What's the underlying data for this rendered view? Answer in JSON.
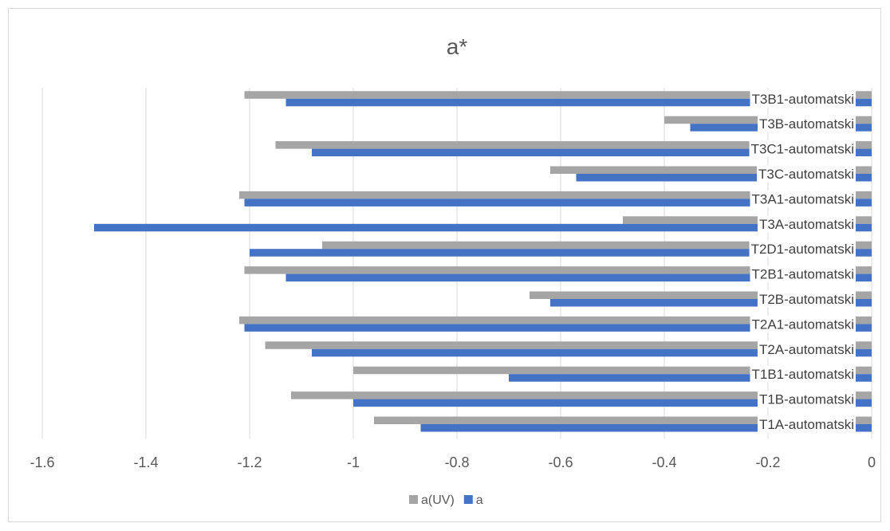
{
  "chart_data": {
    "type": "bar",
    "orientation": "horizontal",
    "title": "a*",
    "xlim": [
      -1.6,
      0
    ],
    "x_ticks": [
      "-1.6",
      "-1.4",
      "-1.2",
      "-1",
      "-0.8",
      "-0.6",
      "-0.4",
      "-0.2",
      "0"
    ],
    "x_tick_values": [
      -1.6,
      -1.4,
      -1.2,
      -1.0,
      -0.8,
      -0.6,
      -0.4,
      -0.2,
      0
    ],
    "grid": true,
    "legend_position": "bottom",
    "categories": [
      "T1A-automatski",
      "T1B-automatski",
      "T1B1-automatski",
      "T2A-automatski",
      "T2A1-automatski",
      "T2B-automatski",
      "T2B1-automatski",
      "T2D1-automatski",
      "T3A-automatski",
      "T3A1-automatski",
      "T3C-automatski",
      "T3C1-automatski",
      "T3B-automatski",
      "T3B1-automatski"
    ],
    "series": [
      {
        "name": "a(UV)",
        "color": "#a5a5a5",
        "values": [
          -0.96,
          -1.12,
          -1.0,
          -1.17,
          -1.22,
          -0.66,
          -1.21,
          -1.06,
          -0.48,
          -1.22,
          -0.62,
          -1.15,
          -0.4,
          -1.21
        ]
      },
      {
        "name": "a",
        "color": "#4472c4",
        "values": [
          -0.87,
          -1.0,
          -0.7,
          -1.08,
          -1.21,
          -0.62,
          -1.13,
          -1.2,
          -1.5,
          -1.21,
          -0.57,
          -1.08,
          -0.35,
          -1.13
        ]
      }
    ]
  }
}
